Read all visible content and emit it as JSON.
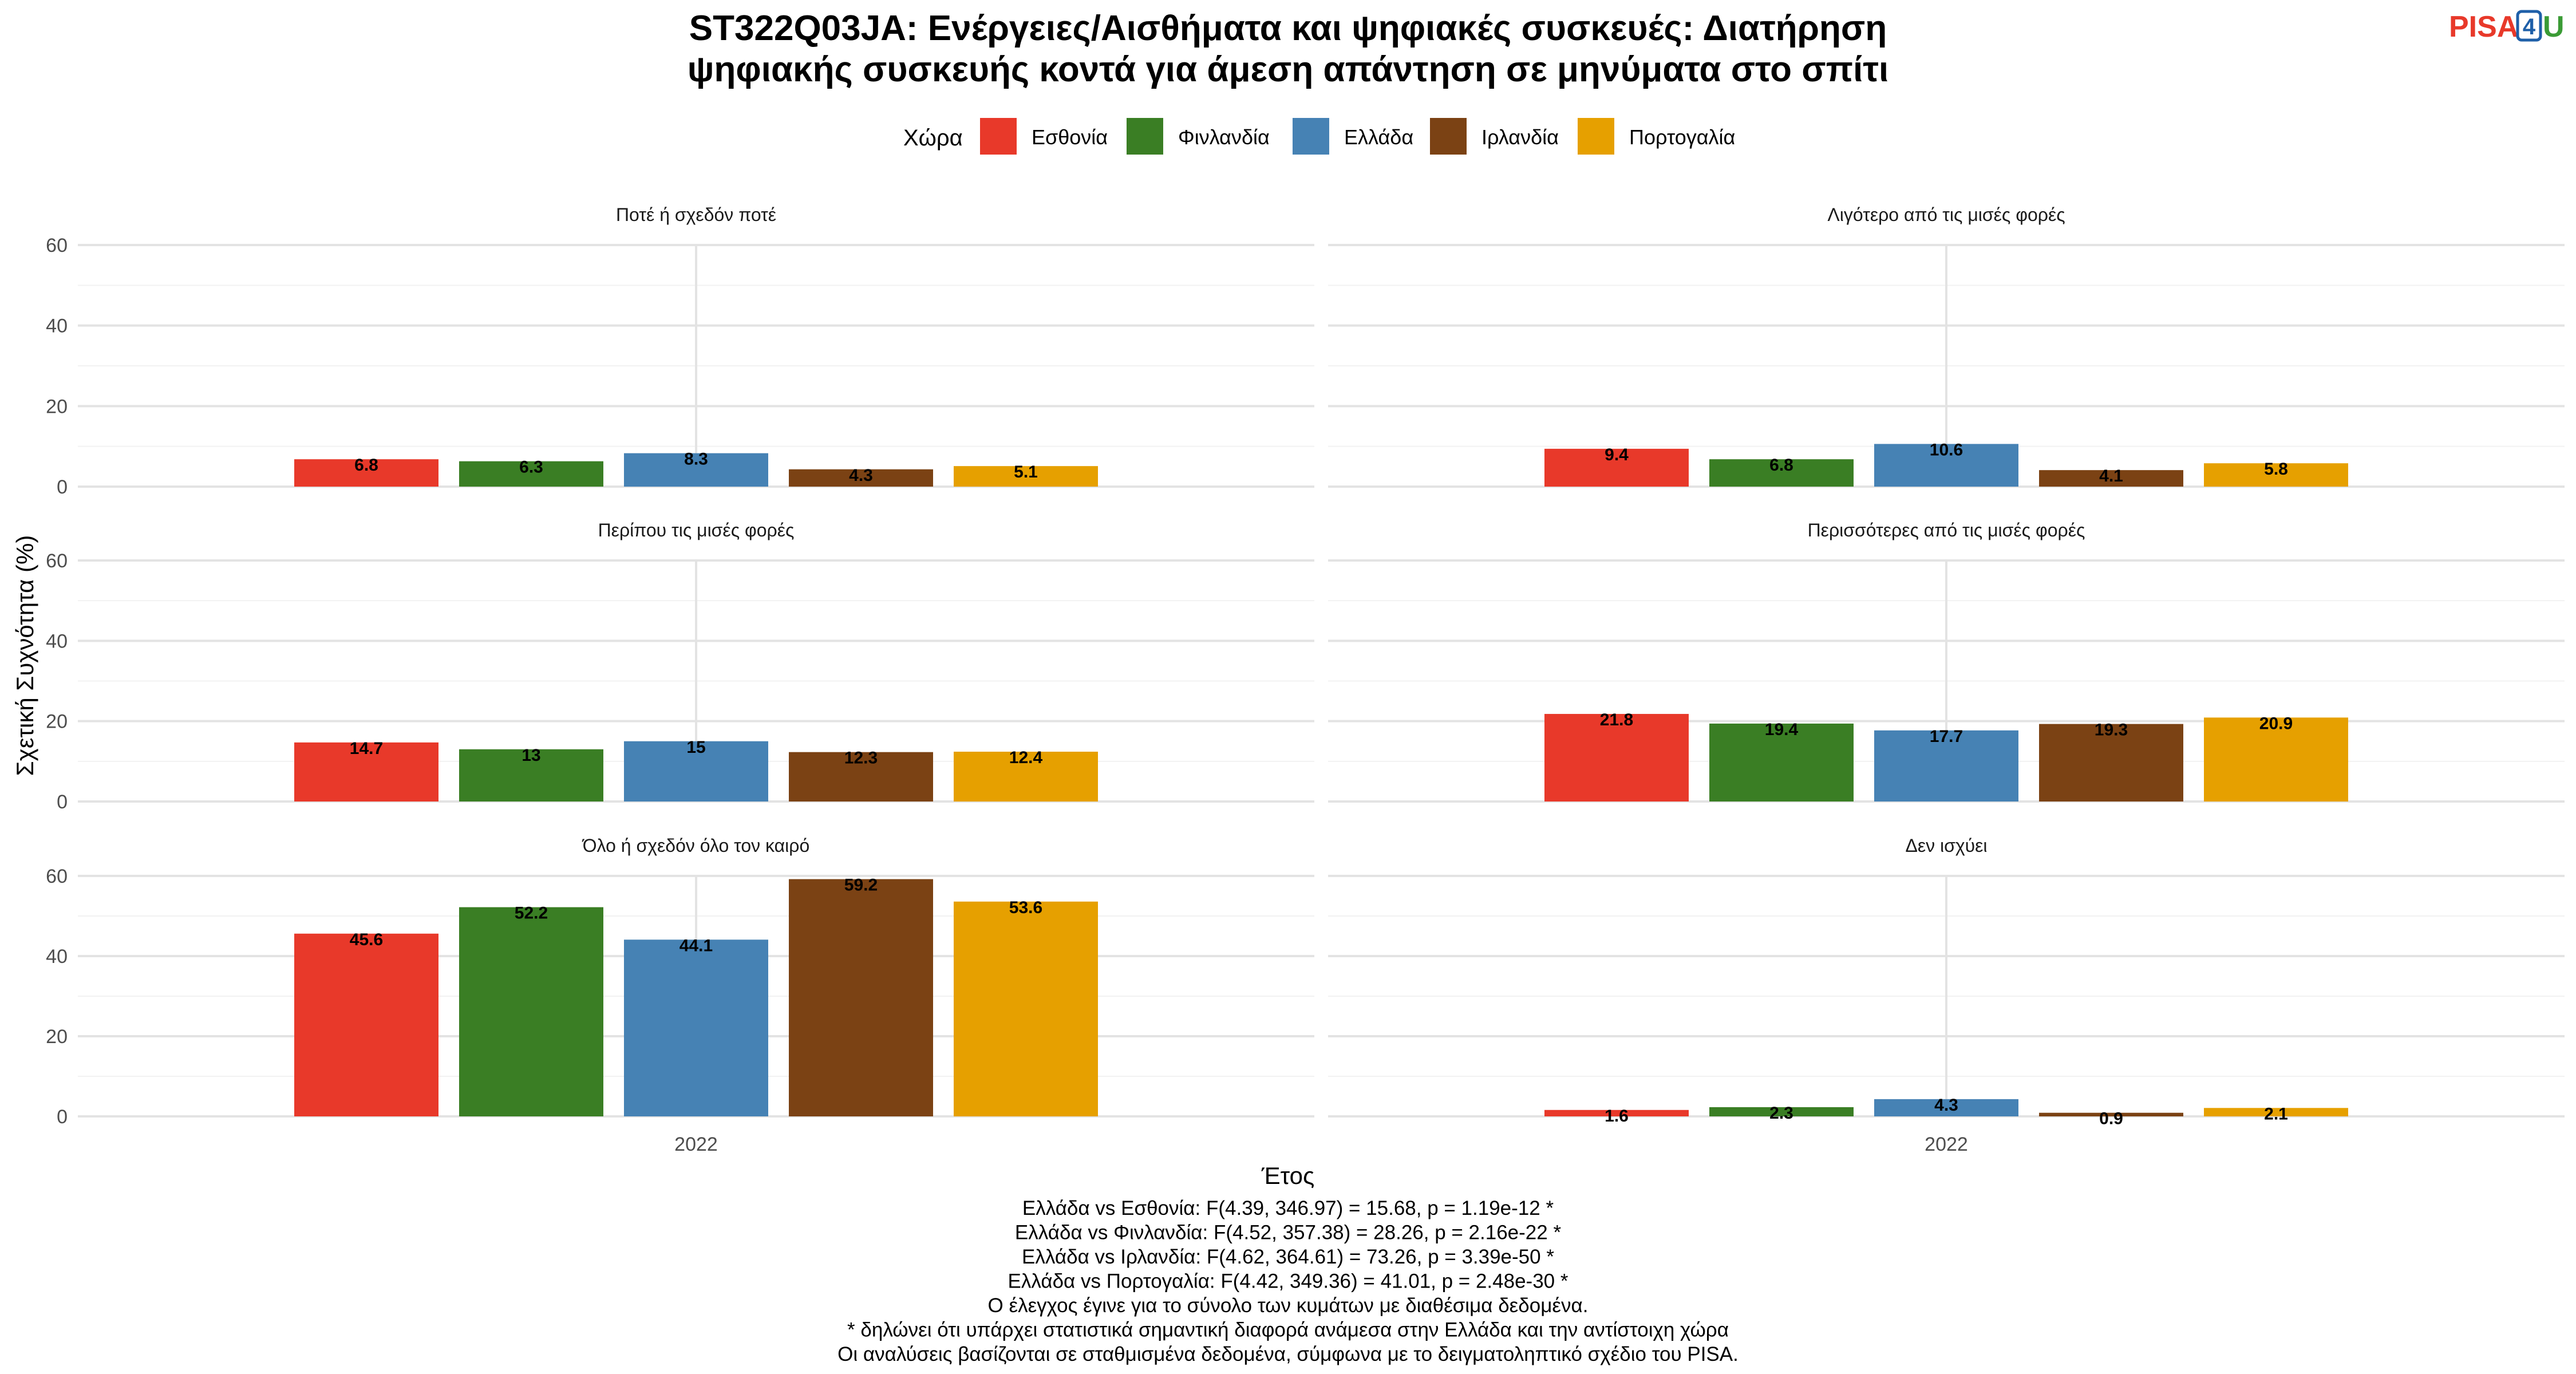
{
  "logo": {
    "left": "PISA",
    "middle": "4",
    "right": "U"
  },
  "title_lines": [
    "ST322Q03JA: Ενέργειες/Αισθήματα και ψηφιακές συσκευές: Διατήρηση",
    "ψηφιακής συσκευής κοντά για άμεση απάντηση σε μηνύματα στο σπίτι"
  ],
  "legend": {
    "title": "Χώρα",
    "position": "top-center",
    "items": [
      {
        "label": "Εσθονία",
        "color": "#e8392a"
      },
      {
        "label": "Φινλανδία",
        "color": "#3a7e24"
      },
      {
        "label": "Ελλάδα",
        "color": "#4682b4"
      },
      {
        "label": "Ιρλανδία",
        "color": "#7b4214"
      },
      {
        "label": "Πορτογαλία",
        "color": "#e6a000"
      }
    ]
  },
  "chart_data": {
    "type": "bar",
    "xlabel": "Έτος",
    "ylabel": "Σχετική Συχνότητα (%)",
    "ylim": [
      0,
      60
    ],
    "yticks": [
      0,
      20,
      40,
      60
    ],
    "grid": true,
    "categories": [
      "2022"
    ],
    "series_names": [
      "Εσθονία",
      "Φινλανδία",
      "Ελλάδα",
      "Ιρλανδία",
      "Πορτογαλία"
    ],
    "facets": [
      {
        "title": "Ποτέ ή σχεδόν ποτέ",
        "values": [
          6.8,
          6.3,
          8.3,
          4.3,
          5.1
        ]
      },
      {
        "title": "Λιγότερο από τις μισές φορές",
        "values": [
          9.4,
          6.8,
          10.6,
          4.1,
          5.8
        ]
      },
      {
        "title": "Περίπου τις μισές φορές",
        "values": [
          14.7,
          13,
          15,
          12.3,
          12.4
        ]
      },
      {
        "title": "Περισσότερες από τις μισές φορές",
        "values": [
          21.8,
          19.4,
          17.7,
          19.3,
          20.9
        ]
      },
      {
        "title": "Όλο ή σχεδόν όλο τον καιρό",
        "values": [
          45.6,
          52.2,
          44.1,
          59.2,
          53.6
        ]
      },
      {
        "title": "Δεν ισχύει",
        "values": [
          1.6,
          2.3,
          4.3,
          0.9,
          2.1
        ]
      }
    ]
  },
  "footnotes": [
    "Ελλάδα vs Εσθονία: F(4.39, 346.97) = 15.68, p = 1.19e-12 *",
    "Ελλάδα vs Φινλανδία: F(4.52, 357.38) = 28.26, p = 2.16e-22 *",
    "Ελλάδα vs Ιρλανδία: F(4.62, 364.61) = 73.26, p = 3.39e-50 *",
    "Ελλάδα vs Πορτογαλία: F(4.42, 349.36) = 41.01, p = 2.48e-30 *",
    "Ο έλεγχος έγινε για το σύνολο των κυμάτων με διαθέσιμα δεδομένα.",
    "* δηλώνει ότι υπάρχει στατιστικά σημαντική διαφορά ανάμεσα στην Ελλάδα και την αντίστοιχη χώρα",
    "Οι αναλύσεις βασίζονται σε σταθμισμένα δεδομένα, σύμφωνα με το δειγματοληπτικό σχέδιο του PISA."
  ]
}
